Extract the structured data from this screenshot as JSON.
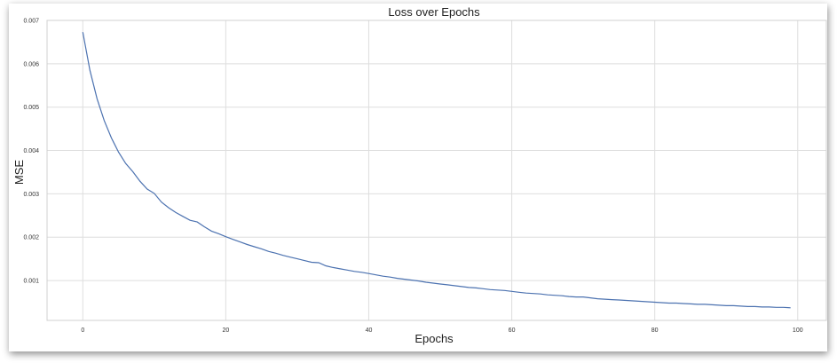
{
  "chart_data": {
    "type": "line",
    "title": "Loss over Epochs",
    "xlabel": "Epochs",
    "ylabel": "MSE",
    "xlim": [
      -5,
      104
    ],
    "ylim": [
      8e-05,
      0.007
    ],
    "x_ticks": [
      0,
      20,
      40,
      60,
      80,
      100
    ],
    "y_ticks": [
      0.001,
      0.002,
      0.003,
      0.004,
      0.005,
      0.006,
      0.007
    ],
    "x_tick_labels": [
      "0",
      "20",
      "40",
      "60",
      "80",
      "100"
    ],
    "y_tick_labels": [
      "0.001",
      "0.002",
      "0.003",
      "0.004",
      "0.005",
      "0.006",
      "0.007"
    ],
    "grid": true,
    "colors": {
      "line": "#4c72b0",
      "grid": "#dedede"
    },
    "series": [
      {
        "x": [
          0,
          1,
          2,
          3,
          4,
          5,
          6,
          7,
          8,
          9,
          10,
          11,
          12,
          13,
          14,
          15,
          16,
          17,
          18,
          19,
          20,
          21,
          22,
          23,
          24,
          25,
          26,
          27,
          28,
          29,
          30,
          31,
          32,
          33,
          34,
          35,
          36,
          37,
          38,
          39,
          40,
          41,
          42,
          43,
          44,
          45,
          46,
          47,
          48,
          49,
          50,
          51,
          52,
          53,
          54,
          55,
          56,
          57,
          58,
          59,
          60,
          61,
          62,
          63,
          64,
          65,
          66,
          67,
          68,
          69,
          70,
          71,
          72,
          73,
          74,
          75,
          76,
          77,
          78,
          79,
          80,
          81,
          82,
          83,
          84,
          85,
          86,
          87,
          88,
          89,
          90,
          91,
          92,
          93,
          94,
          95,
          96,
          97,
          98,
          99
        ],
        "values": [
          0.00673,
          0.00585,
          0.00519,
          0.00469,
          0.00429,
          0.00396,
          0.0037,
          0.00351,
          0.00329,
          0.00311,
          0.00301,
          0.00281,
          0.00268,
          0.00257,
          0.00248,
          0.00239,
          0.00235,
          0.00224,
          0.00214,
          0.00208,
          0.00201,
          0.00195,
          0.00189,
          0.00183,
          0.00178,
          0.00173,
          0.00167,
          0.00163,
          0.00158,
          0.00154,
          0.0015,
          0.00146,
          0.00142,
          0.00141,
          0.00134,
          0.0013,
          0.00127,
          0.00124,
          0.00121,
          0.00119,
          0.00116,
          0.00113,
          0.0011,
          0.00108,
          0.00105,
          0.00103,
          0.00101,
          0.00099,
          0.00096,
          0.00094,
          0.00092,
          0.0009,
          0.00088,
          0.00086,
          0.00084,
          0.00083,
          0.00081,
          0.00079,
          0.00078,
          0.00077,
          0.00075,
          0.00073,
          0.00071,
          0.0007,
          0.00069,
          0.00067,
          0.00066,
          0.00065,
          0.00063,
          0.00062,
          0.00062,
          0.0006,
          0.00058,
          0.00057,
          0.00056,
          0.00055,
          0.00054,
          0.00053,
          0.00052,
          0.00051,
          0.0005,
          0.00049,
          0.00048,
          0.00048,
          0.00047,
          0.00046,
          0.00045,
          0.00045,
          0.00044,
          0.00043,
          0.00042,
          0.00042,
          0.00041,
          0.0004,
          0.0004,
          0.00039,
          0.00039,
          0.00038,
          0.00038,
          0.00037
        ]
      }
    ]
  }
}
